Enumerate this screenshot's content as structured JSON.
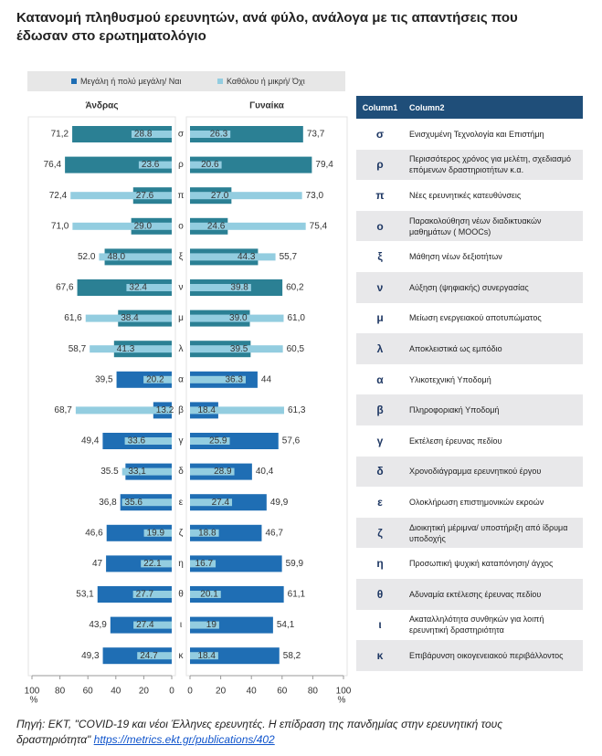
{
  "chart_data": {
    "type": "butterfly",
    "title": "Κατανομή πληθυσμού ερευνητών, ανά φύλο, ανάλογα με τις απαντήσεις που έδωσαν στο ερωτηματολόγιο",
    "categories": [
      "σ",
      "ρ",
      "π",
      "ο",
      "ξ",
      "ν",
      "μ",
      "λ",
      "α",
      "β",
      "γ",
      "δ",
      "ε",
      "ζ",
      "η",
      "θ",
      "ι",
      "κ"
    ],
    "legend": [
      {
        "name": "Μεγάλη ή πολύ μεγάλη/ Ναι",
        "color": "#1f6eb4",
        "colors": [
          "#2b8094",
          "#2b8094",
          "#2b8094",
          "#2b8094",
          "#2b8094",
          "#2b8094",
          "#2b8094",
          "#2b8094",
          "#1f6eb4",
          "#1f6eb4",
          "#1f6eb4",
          "#1f6eb4",
          "#1f6eb4",
          "#1f6eb4",
          "#1f6eb4",
          "#1f6eb4",
          "#1f6eb4",
          "#1f6eb4"
        ]
      },
      {
        "name": "Καθόλου ή μικρή/ Όχι",
        "color": "#93cde0"
      }
    ],
    "panels": [
      {
        "title": "Άνδρας",
        "series": [
          {
            "values": [
              71.2,
              76.4,
              27.6,
              29.0,
              48.0,
              67.6,
              38.4,
              41.3,
              39.5,
              13.2,
              49.4,
              33.1,
              36.8,
              46.6,
              47,
              53.1,
              43.9,
              49.3
            ],
            "value_labels": [
              "71,2",
              "76,4",
              "27.6",
              "29.0",
              "48,0",
              "67,6",
              "38.4",
              "41.3",
              "39,5",
              "13.2",
              "49,4",
              "33,1",
              "36,8",
              "46,6",
              "47",
              "53,1",
              "43,9",
              "49,3"
            ]
          },
          {
            "values": [
              28.8,
              23.6,
              72.4,
              71.0,
              52.0,
              32.4,
              61.6,
              58.7,
              20.2,
              68.7,
              33.6,
              35.5,
              35.6,
              19.9,
              22.1,
              27.7,
              27.4,
              24.7
            ],
            "value_labels": [
              "28.8",
              "23.6",
              "72,4",
              "71,0",
              "52.0",
              "32.4",
              "61,6",
              "58,7",
              "20.2",
              "68,7",
              "33.6",
              "35.5",
              "35.6",
              "19.9",
              "22.1",
              "27.7",
              "27.4",
              "24.7"
            ]
          }
        ]
      },
      {
        "title": "Γυναίκα",
        "series": [
          {
            "values": [
              73.7,
              79.4,
              27.0,
              24.6,
              44.3,
              60.2,
              39.0,
              39.5,
              44,
              18.4,
              57.6,
              40.4,
              49.9,
              46.7,
              59.9,
              61.1,
              54.1,
              58.2
            ],
            "value_labels": [
              "73,7",
              "79,4",
              "27.0",
              "24.6",
              "44.3",
              "60,2",
              "39.0",
              "39.5",
              "44",
              "18.4",
              "57,6",
              "40,4",
              "49,9",
              "46,7",
              "59,9",
              "61,1",
              "54,1",
              "58,2"
            ]
          },
          {
            "values": [
              26.3,
              20.6,
              73.0,
              75.4,
              55.7,
              39.8,
              61.0,
              60.5,
              36.3,
              61.3,
              25.9,
              28.9,
              27.4,
              18.8,
              16.7,
              20.1,
              19,
              18.4
            ],
            "value_labels": [
              "26.3",
              "20.6",
              "73,0",
              "75,4",
              "55,7",
              "39.8",
              "61,0",
              "60,5",
              "36.3",
              "61,3",
              "25.9",
              "28.9",
              "27.4",
              "18.8",
              "16.7",
              "20.1",
              "19",
              "18.4"
            ]
          }
        ]
      }
    ],
    "xlim": [
      0,
      100
    ],
    "xticks": [
      0,
      20,
      40,
      60,
      80,
      100
    ],
    "axis_unit": "%"
  },
  "table": {
    "header": [
      "Column1",
      "Column2"
    ],
    "descriptions": [
      "Ενισχυμένη Τεχνολογία και Επιστήμη",
      "Περισσότερος χρόνος για μελέτη, σχεδιασμό επόμενων δραστηριοτήτων κ.α.",
      "Νέες ερευνητικές κατευθύνσεις",
      "Παρακολούθηση νέων διαδικτυακών μαθημάτων ( MOOCs)",
      "Μάθηση νέων δεξιοτήτων",
      "Αύξηση (ψηφιακής) συνεργασίας",
      "Μείωση ενεργειακού αποτυπώματος",
      "Αποκλειστικά ως εμπόδιο",
      "Υλικοτεχνική Υποδομή",
      "Πληροφοριακή Υποδομή",
      "Εκτέλεση έρευνας πεδίου",
      "Χρονοδιάγραμμα ερευνητικού έργου",
      "Ολοκλήρωση επιστημονικών εκροών",
      "Διοικητική μέριμνα/ υποστήριξη από ίδρυμα υποδοχής",
      "Προσωπική ψυχική καταπόνηση/ άγχος",
      "Αδυναμία εκτέλεσης έρευνας πεδίου",
      "Ακαταλληλότητα συνθηκών για λοιπή ερευνητική δραστηριότητα",
      "Επιβάρυνση οικογενειακού περιβάλλοντος"
    ]
  },
  "source": {
    "text": "Πηγή: ΕΚΤ, \"COVID-19 και νέοι Έλληνες ερευνητές. Η επίδραση της πανδημίας στην ερευνητική τους δραστηριότητα\"",
    "link": "https://metrics.ekt.gr/publications/402"
  }
}
